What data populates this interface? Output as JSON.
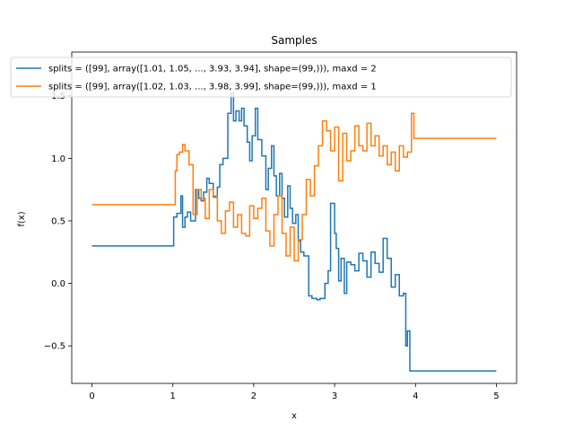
{
  "chart_data": {
    "type": "line",
    "title": "Samples",
    "xlabel": "x",
    "ylabel": "f(x)",
    "xlim": [
      -0.25,
      5.25
    ],
    "ylim": [
      -0.8,
      1.85
    ],
    "xticks": [
      0,
      1,
      2,
      3,
      4,
      5
    ],
    "xtick_labels": [
      "0",
      "1",
      "2",
      "3",
      "4",
      "5"
    ],
    "yticks": [
      -0.5,
      0.0,
      0.5,
      1.0,
      1.5
    ],
    "ytick_labels": [
      "−0.5",
      "0.0",
      "0.5",
      "1.0",
      "1.5"
    ],
    "grid": false,
    "legend_position": "top",
    "series": [
      {
        "name": "splits = ([99], array([1.01, 1.05, ..., 3.93, 3.94], shape=(99,))), maxd = 2",
        "color": "#1f77b4",
        "x": [
          0,
          1.01,
          1.05,
          1.1,
          1.12,
          1.15,
          1.18,
          1.22,
          1.28,
          1.32,
          1.35,
          1.38,
          1.42,
          1.45,
          1.5,
          1.55,
          1.58,
          1.62,
          1.68,
          1.72,
          1.75,
          1.78,
          1.82,
          1.85,
          1.88,
          1.92,
          1.95,
          1.98,
          2.02,
          2.05,
          2.1,
          2.15,
          2.18,
          2.22,
          2.25,
          2.28,
          2.32,
          2.35,
          2.38,
          2.42,
          2.45,
          2.48,
          2.52,
          2.55,
          2.58,
          2.62,
          2.68,
          2.72,
          2.78,
          2.82,
          2.88,
          2.92,
          2.95,
          3.0,
          3.02,
          3.05,
          3.08,
          3.12,
          3.15,
          3.2,
          3.25,
          3.3,
          3.35,
          3.4,
          3.45,
          3.5,
          3.55,
          3.6,
          3.65,
          3.7,
          3.75,
          3.8,
          3.85,
          3.88,
          3.9,
          3.93,
          3.94,
          5.0
        ],
        "y": [
          0.3,
          0.53,
          0.56,
          0.7,
          0.45,
          0.53,
          0.57,
          0.5,
          0.75,
          0.68,
          0.66,
          0.73,
          0.84,
          0.8,
          0.69,
          0.77,
          0.95,
          1.0,
          1.36,
          1.52,
          1.3,
          1.38,
          1.3,
          1.4,
          1.26,
          1.13,
          0.98,
          1.18,
          1.4,
          1.15,
          1.02,
          0.75,
          0.92,
          1.1,
          0.86,
          0.7,
          0.88,
          0.68,
          0.53,
          0.78,
          0.6,
          0.48,
          0.55,
          0.34,
          0.25,
          0.22,
          -0.1,
          -0.12,
          -0.13,
          -0.12,
          0.0,
          0.1,
          0.64,
          0.4,
          0.28,
          0.02,
          0.2,
          -0.08,
          0.17,
          0.15,
          0.1,
          0.24,
          0.18,
          0.05,
          0.25,
          0.16,
          0.09,
          0.36,
          0.2,
          -0.03,
          0.07,
          -0.1,
          -0.08,
          -0.5,
          -0.38,
          -0.7,
          -0.7,
          -0.7
        ]
      },
      {
        "name": "splits = ([99], array([1.02, 1.03, ..., 3.98, 3.99], shape=(99,))), maxd = 1",
        "color": "#ff7f0e",
        "x": [
          0,
          1.02,
          1.03,
          1.05,
          1.08,
          1.12,
          1.15,
          1.2,
          1.25,
          1.3,
          1.35,
          1.4,
          1.45,
          1.5,
          1.55,
          1.6,
          1.65,
          1.7,
          1.75,
          1.8,
          1.85,
          1.9,
          1.95,
          2.0,
          2.05,
          2.1,
          2.15,
          2.2,
          2.25,
          2.3,
          2.35,
          2.4,
          2.45,
          2.5,
          2.55,
          2.6,
          2.65,
          2.7,
          2.75,
          2.8,
          2.85,
          2.9,
          2.95,
          3.0,
          3.05,
          3.1,
          3.15,
          3.2,
          3.25,
          3.3,
          3.35,
          3.4,
          3.45,
          3.5,
          3.55,
          3.6,
          3.65,
          3.7,
          3.75,
          3.8,
          3.85,
          3.9,
          3.95,
          3.98,
          3.99,
          5.0
        ],
        "y": [
          0.63,
          0.63,
          0.9,
          1.03,
          1.05,
          1.11,
          1.06,
          0.95,
          0.55,
          0.75,
          0.68,
          0.52,
          0.75,
          0.7,
          0.5,
          0.4,
          0.58,
          0.65,
          0.45,
          0.55,
          0.4,
          0.38,
          0.62,
          0.52,
          0.6,
          0.68,
          0.42,
          0.3,
          0.55,
          0.7,
          0.4,
          0.22,
          0.45,
          0.18,
          0.35,
          0.55,
          0.83,
          0.7,
          0.94,
          1.1,
          1.3,
          1.22,
          1.06,
          1.25,
          0.82,
          1.2,
          0.98,
          1.06,
          1.26,
          1.1,
          1.06,
          1.28,
          1.1,
          1.18,
          1.02,
          1.1,
          0.95,
          1.05,
          0.9,
          1.1,
          1.01,
          1.05,
          1.36,
          1.16,
          1.16,
          1.16
        ]
      }
    ]
  }
}
